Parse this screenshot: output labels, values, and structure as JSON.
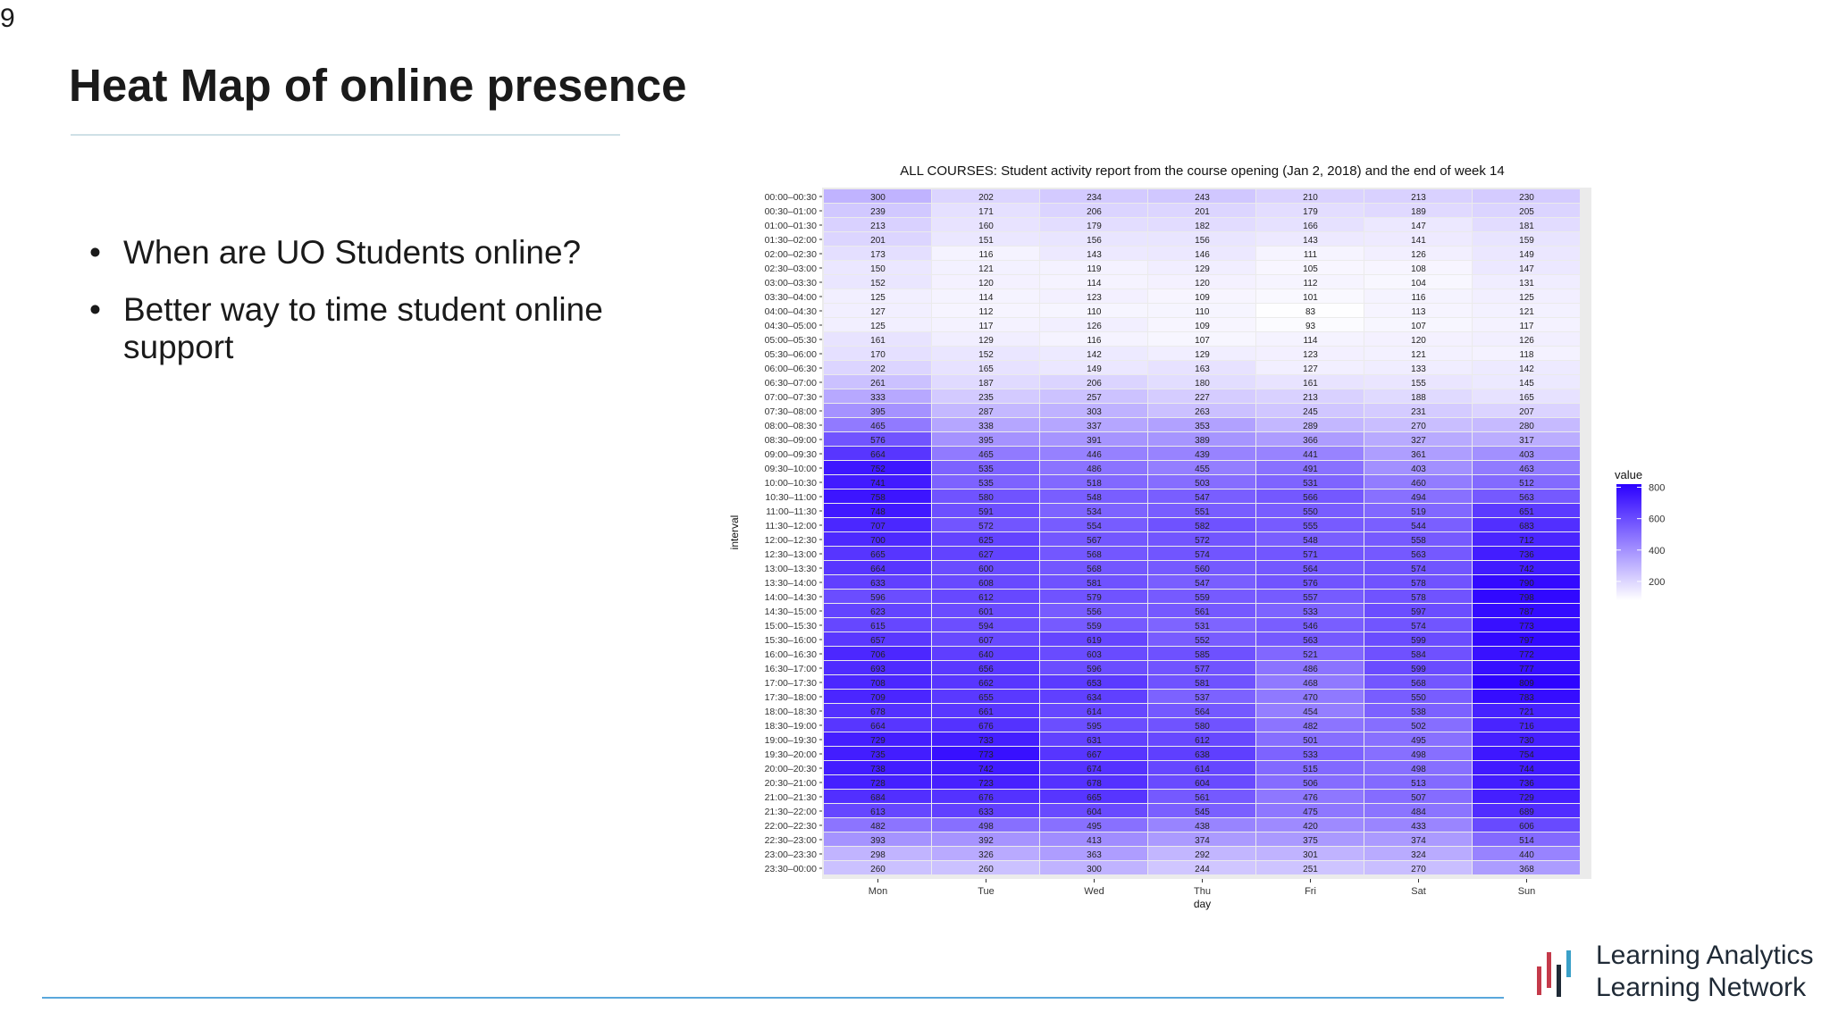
{
  "slide": {
    "page_number": "9",
    "title": "Heat Map of online presence",
    "bullets": [
      "When are UO Students online?",
      "Better way to time student online support"
    ]
  },
  "logo": {
    "line1": "Learning Analytics",
    "line2": "Learning Network",
    "bar_colors": [
      "#c43a4a",
      "#c43a4a",
      "#1f2a36",
      "#3aa0c8"
    ]
  },
  "colors": {
    "low": "#ffffff",
    "high": "#2b00ff",
    "panel_bg": "#ebebeb"
  },
  "chart_data": {
    "type": "heatmap",
    "title": "ALL COURSES: Student activity report from the course opening (Jan 2, 2018) and the end of week 14",
    "xlabel": "day",
    "ylabel": "interval",
    "x": [
      "Mon",
      "Tue",
      "Wed",
      "Thu",
      "Fri",
      "Sat",
      "Sun"
    ],
    "y": [
      "00:00–00:30",
      "00:30–01:00",
      "01:00–01:30",
      "01:30–02:00",
      "02:00–02:30",
      "02:30–03:00",
      "03:00–03:30",
      "03:30–04:00",
      "04:00–04:30",
      "04:30–05:00",
      "05:00–05:30",
      "05:30–06:00",
      "06:00–06:30",
      "06:30–07:00",
      "07:00–07:30",
      "07:30–08:00",
      "08:00–08:30",
      "08:30–09:00",
      "09:00–09:30",
      "09:30–10:00",
      "10:00–10:30",
      "10:30–11:00",
      "11:00–11:30",
      "11:30–12:00",
      "12:00–12:30",
      "12:30–13:00",
      "13:00–13:30",
      "13:30–14:00",
      "14:00–14:30",
      "14:30–15:00",
      "15:00–15:30",
      "15:30–16:00",
      "16:00–16:30",
      "16:30–17:00",
      "17:00–17:30",
      "17:30–18:00",
      "18:00–18:30",
      "18:30–19:00",
      "19:00–19:30",
      "19:30–20:00",
      "20:00–20:30",
      "20:30–21:00",
      "21:00–21:30",
      "21:30–22:00",
      "22:00–22:30",
      "22:30–23:00",
      "23:00–23:30",
      "23:30–00:00"
    ],
    "values": [
      [
        300,
        202,
        234,
        243,
        210,
        213,
        230
      ],
      [
        239,
        171,
        206,
        201,
        179,
        189,
        205
      ],
      [
        213,
        160,
        179,
        182,
        166,
        147,
        181
      ],
      [
        201,
        151,
        156,
        156,
        143,
        141,
        159
      ],
      [
        173,
        116,
        143,
        146,
        111,
        126,
        149
      ],
      [
        150,
        121,
        119,
        129,
        105,
        108,
        147
      ],
      [
        152,
        120,
        114,
        120,
        112,
        104,
        131
      ],
      [
        125,
        114,
        123,
        109,
        101,
        116,
        125
      ],
      [
        127,
        112,
        110,
        110,
        83,
        113,
        121
      ],
      [
        125,
        117,
        126,
        109,
        93,
        107,
        117
      ],
      [
        161,
        129,
        116,
        107,
        114,
        120,
        126
      ],
      [
        170,
        152,
        142,
        129,
        123,
        121,
        118
      ],
      [
        202,
        165,
        149,
        163,
        127,
        133,
        142
      ],
      [
        261,
        187,
        206,
        180,
        161,
        155,
        145
      ],
      [
        333,
        235,
        257,
        227,
        213,
        188,
        165
      ],
      [
        395,
        287,
        303,
        263,
        245,
        231,
        207
      ],
      [
        465,
        338,
        337,
        353,
        289,
        270,
        280
      ],
      [
        576,
        395,
        391,
        389,
        366,
        327,
        317
      ],
      [
        664,
        465,
        446,
        439,
        441,
        361,
        403
      ],
      [
        752,
        535,
        486,
        455,
        491,
        403,
        463
      ],
      [
        741,
        535,
        518,
        503,
        531,
        460,
        512
      ],
      [
        758,
        580,
        548,
        547,
        566,
        494,
        563
      ],
      [
        748,
        591,
        534,
        551,
        550,
        519,
        651
      ],
      [
        707,
        572,
        554,
        582,
        555,
        544,
        683
      ],
      [
        700,
        625,
        567,
        572,
        548,
        558,
        712
      ],
      [
        665,
        627,
        568,
        574,
        571,
        563,
        736
      ],
      [
        664,
        600,
        568,
        560,
        564,
        574,
        742
      ],
      [
        633,
        608,
        581,
        547,
        576,
        578,
        790
      ],
      [
        596,
        612,
        579,
        559,
        557,
        578,
        798
      ],
      [
        623,
        601,
        556,
        561,
        533,
        597,
        787
      ],
      [
        615,
        594,
        559,
        531,
        546,
        574,
        773
      ],
      [
        657,
        607,
        619,
        552,
        563,
        599,
        797
      ],
      [
        706,
        640,
        603,
        585,
        521,
        584,
        772
      ],
      [
        693,
        656,
        596,
        577,
        486,
        599,
        777
      ],
      [
        708,
        662,
        653,
        581,
        468,
        568,
        809
      ],
      [
        709,
        655,
        634,
        537,
        470,
        550,
        783
      ],
      [
        678,
        661,
        614,
        564,
        454,
        538,
        721
      ],
      [
        664,
        676,
        595,
        580,
        482,
        502,
        716
      ],
      [
        729,
        733,
        631,
        612,
        501,
        495,
        730
      ],
      [
        735,
        773,
        667,
        638,
        533,
        498,
        754
      ],
      [
        738,
        742,
        674,
        614,
        515,
        498,
        744
      ],
      [
        728,
        723,
        678,
        604,
        506,
        513,
        736
      ],
      [
        684,
        676,
        665,
        561,
        476,
        507,
        729
      ],
      [
        613,
        633,
        604,
        545,
        475,
        484,
        689
      ],
      [
        482,
        498,
        495,
        438,
        420,
        433,
        606
      ],
      [
        393,
        392,
        413,
        374,
        375,
        374,
        514
      ],
      [
        298,
        326,
        363,
        292,
        301,
        324,
        440
      ],
      [
        260,
        260,
        300,
        244,
        251,
        270,
        368
      ]
    ],
    "legend": {
      "title": "value",
      "ticks": [
        800,
        600,
        400,
        200
      ],
      "placement": "right"
    },
    "range": [
      80,
      820
    ]
  }
}
